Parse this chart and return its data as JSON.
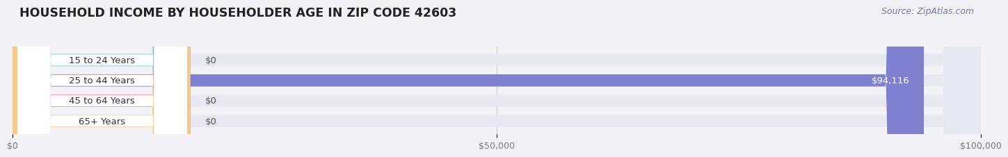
{
  "title": "HOUSEHOLD INCOME BY HOUSEHOLDER AGE IN ZIP CODE 42603",
  "source": "Source: ZipAtlas.com",
  "categories": [
    "15 to 24 Years",
    "25 to 44 Years",
    "45 to 64 Years",
    "65+ Years"
  ],
  "values": [
    0,
    94116,
    0,
    0
  ],
  "bar_colors": [
    "#5ecfca",
    "#8080d0",
    "#f088a8",
    "#f5c98a"
  ],
  "xlim": [
    0,
    100000
  ],
  "xticks": [
    0,
    50000,
    100000
  ],
  "xtick_labels": [
    "$0",
    "$50,000",
    "$100,000"
  ],
  "background_color": "#f2f2f7",
  "bar_bg_color": "#e8e8f0",
  "bar_bg_white": "#ffffff",
  "title_fontsize": 12.5,
  "label_fontsize": 9.5,
  "source_fontsize": 9
}
